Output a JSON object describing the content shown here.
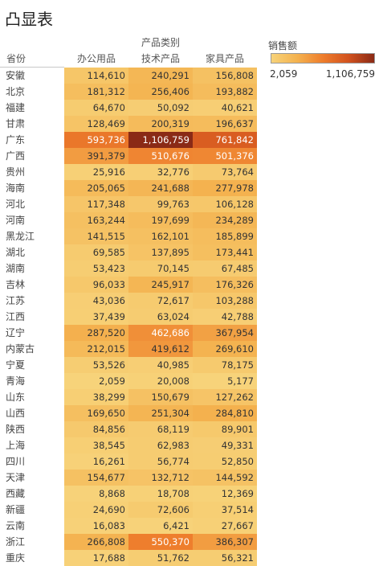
{
  "chart_data": {
    "type": "heatmap",
    "title": "凸显表",
    "column_group_label": "产品类别",
    "row_header": "省份",
    "columns": [
      "办公用品",
      "技术产品",
      "家具产品"
    ],
    "rows": [
      "安徽",
      "北京",
      "福建",
      "甘肃",
      "广东",
      "广西",
      "贵州",
      "海南",
      "河北",
      "河南",
      "黑龙江",
      "湖北",
      "湖南",
      "吉林",
      "江苏",
      "江西",
      "辽宁",
      "内蒙古",
      "宁夏",
      "青海",
      "山东",
      "山西",
      "陕西",
      "上海",
      "四川",
      "天津",
      "西藏",
      "新疆",
      "云南",
      "浙江",
      "重庆"
    ],
    "values": [
      [
        114610,
        240291,
        156808
      ],
      [
        181312,
        256406,
        193882
      ],
      [
        64670,
        50092,
        40621
      ],
      [
        128469,
        200319,
        196637
      ],
      [
        593736,
        1106759,
        761842
      ],
      [
        391379,
        510676,
        501376
      ],
      [
        25916,
        32776,
        73764
      ],
      [
        205065,
        241688,
        277978
      ],
      [
        117348,
        99763,
        106128
      ],
      [
        163244,
        197699,
        234289
      ],
      [
        141515,
        162101,
        185899
      ],
      [
        69585,
        137895,
        173441
      ],
      [
        53423,
        70145,
        67485
      ],
      [
        96033,
        245917,
        176326
      ],
      [
        43036,
        72617,
        103288
      ],
      [
        37439,
        63024,
        42788
      ],
      [
        287520,
        462686,
        367954
      ],
      [
        212015,
        419612,
        269610
      ],
      [
        53526,
        40985,
        78175
      ],
      [
        2059,
        20008,
        5177
      ],
      [
        38299,
        150679,
        127262
      ],
      [
        169650,
        251304,
        284810
      ],
      [
        84856,
        68119,
        89901
      ],
      [
        38545,
        62983,
        49331
      ],
      [
        16261,
        56774,
        52850
      ],
      [
        154677,
        132712,
        144592
      ],
      [
        8868,
        18708,
        12369
      ],
      [
        24690,
        72606,
        37514
      ],
      [
        16083,
        6421,
        27667
      ],
      [
        266808,
        550370,
        386307
      ],
      [
        17688,
        51762,
        56321
      ]
    ],
    "color_scale": {
      "title": "销售额",
      "min": 2059,
      "max": 1106759,
      "min_label": "2,059",
      "max_label": "1,106,759",
      "stops": [
        "#f7d37a",
        "#f4b24f",
        "#ee7d2c",
        "#d2521e",
        "#8a2a16"
      ]
    }
  }
}
